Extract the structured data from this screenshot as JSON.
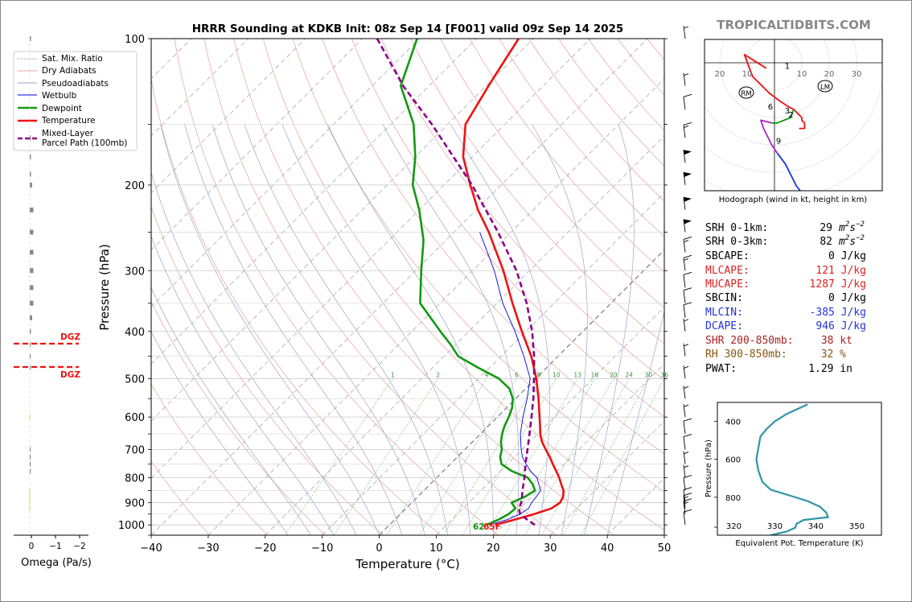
{
  "title": "HRRR Sounding at KDKB Init: 08z Sep 14 [F001] valid 09z Sep 14 2025",
  "brand": "TROPICALTIDBITS.COM",
  "chart_data": [
    {
      "type": "line",
      "name": "skew-t",
      "xlabel": "Temperature (°C)",
      "ylabel": "Pressure (hPa)",
      "xlim": [
        -40,
        50
      ],
      "ylim": [
        1050,
        100
      ],
      "yscale": "log",
      "skew_deg": 45,
      "xticks": [
        -40,
        -30,
        -20,
        -10,
        0,
        10,
        20,
        30,
        40,
        50
      ],
      "yticks": [
        100,
        200,
        300,
        400,
        500,
        600,
        700,
        800,
        900,
        1000
      ],
      "legend_position": "top-left",
      "legend": [
        "Sat. Mix. Ratio",
        "Dry Adiabats",
        "Pseudoadiabats",
        "Wetbulb",
        "Dewpoint",
        "Temperature",
        "Mixed-Layer\nParcel Path (100mb)"
      ],
      "mixing_ratio_labels": [
        "1",
        "2",
        "4",
        "6",
        "8",
        "10",
        "13",
        "16",
        "20",
        "24",
        "30",
        "36"
      ],
      "surface_dewpoint_label": "62",
      "surface_temp_label": "65F",
      "series": [
        {
          "name": "Temperature",
          "color": "#ee1111",
          "points": [
            [
              1000,
              18.5
            ],
            [
              975,
              21
            ],
            [
              950,
              23.5
            ],
            [
              925,
              25.5
            ],
            [
              900,
              26
            ],
            [
              875,
              25.5
            ],
            [
              850,
              24.5
            ],
            [
              825,
              23
            ],
            [
              800,
              21.5
            ],
            [
              775,
              19.8
            ],
            [
              750,
              18
            ],
            [
              725,
              16.2
            ],
            [
              700,
              14.2
            ],
            [
              675,
              12.2
            ],
            [
              650,
              10.5
            ],
            [
              625,
              9
            ],
            [
              600,
              7.4
            ],
            [
              550,
              4
            ],
            [
              500,
              0.1
            ],
            [
              450,
              -4.7
            ],
            [
              400,
              -10.7
            ],
            [
              350,
              -17.3
            ],
            [
              300,
              -24.6
            ],
            [
              250,
              -33.9
            ],
            [
              225,
              -39.7
            ],
            [
              200,
              -45.4
            ],
            [
              175,
              -51.6
            ],
            [
              150,
              -56.9
            ],
            [
              125,
              -59.6
            ],
            [
              100,
              -62.6
            ]
          ]
        },
        {
          "name": "Dewpoint",
          "color": "#119911",
          "points": [
            [
              1000,
              17
            ],
            [
              975,
              18.2
            ],
            [
              950,
              19
            ],
            [
              925,
              19.2
            ],
            [
              900,
              17.5
            ],
            [
              875,
              18.8
            ],
            [
              850,
              19.5
            ],
            [
              825,
              18
            ],
            [
              800,
              16
            ],
            [
              775,
              12
            ],
            [
              750,
              9
            ],
            [
              725,
              7.5
            ],
            [
              700,
              6.5
            ],
            [
              675,
              5
            ],
            [
              650,
              3.8
            ],
            [
              625,
              2.8
            ],
            [
              600,
              2
            ],
            [
              575,
              1
            ],
            [
              550,
              -0.5
            ],
            [
              525,
              -2.8
            ],
            [
              500,
              -6.5
            ],
            [
              475,
              -12
            ],
            [
              450,
              -17.5
            ],
            [
              425,
              -21
            ],
            [
              400,
              -25
            ],
            [
              350,
              -33.5
            ],
            [
              300,
              -39
            ],
            [
              260,
              -43.9
            ],
            [
              225,
              -50
            ],
            [
              200,
              -55.5
            ],
            [
              175,
              -60
            ],
            [
              150,
              -66
            ],
            [
              125,
              -75
            ],
            [
              100,
              -80.4
            ]
          ]
        },
        {
          "name": "Wetbulb",
          "color": "#0000ee",
          "points": [
            [
              1000,
              17.5
            ],
            [
              975,
              19.7
            ],
            [
              950,
              21
            ],
            [
              925,
              21.5
            ],
            [
              900,
              21
            ],
            [
              875,
              20.8
            ],
            [
              850,
              20.5
            ],
            [
              800,
              17.6
            ],
            [
              775,
              15.3
            ],
            [
              750,
              13.3
            ],
            [
              725,
              11.4
            ],
            [
              700,
              9.9
            ],
            [
              650,
              7
            ],
            [
              600,
              4.5
            ],
            [
              550,
              2
            ],
            [
              500,
              -1
            ],
            [
              450,
              -6
            ],
            [
              400,
              -11.9
            ],
            [
              350,
              -19
            ],
            [
              300,
              -26.2
            ],
            [
              250,
              -35.5
            ]
          ]
        },
        {
          "name": "Mixed-Layer Parcel Path (100mb)",
          "color": "#880088",
          "dashed": true,
          "points": [
            [
              1000,
              25.5
            ],
            [
              975,
              23.2
            ],
            [
              950,
              21
            ],
            [
              925,
              19.8
            ],
            [
              900,
              19.2
            ],
            [
              875,
              18.3
            ],
            [
              850,
              17.3
            ],
            [
              800,
              15.4
            ],
            [
              750,
              13.2
            ],
            [
              700,
              11
            ],
            [
              650,
              8.6
            ],
            [
              600,
              6
            ],
            [
              550,
              3.1
            ],
            [
              500,
              -0.3
            ],
            [
              450,
              -4.2
            ],
            [
              400,
              -8.9
            ],
            [
              350,
              -14.8
            ],
            [
              300,
              -22.3
            ],
            [
              250,
              -32.3
            ],
            [
              200,
              -45.1
            ],
            [
              150,
              -62.8
            ],
            [
              125,
              -74.6
            ],
            [
              100,
              -87.4
            ]
          ]
        }
      ]
    },
    {
      "type": "line",
      "name": "hodograph",
      "xlabel": "Hodograph (wind in kt, height in km)",
      "ring_labels": [
        "20",
        "10",
        "10",
        "20",
        "30"
      ],
      "height_labels": [
        "1",
        "2",
        "3",
        "6",
        "9"
      ],
      "storm_motion_labels": [
        "RM",
        "LM"
      ],
      "segments": [
        {
          "color": "#ee1111",
          "points": [
            [
              -3,
              -2
            ],
            [
              -11,
              3
            ],
            [
              -8,
              -5
            ],
            [
              -2,
              -11
            ],
            [
              2,
              -14
            ],
            [
              5,
              -16
            ],
            [
              7,
              -17
            ],
            [
              8,
              -18
            ],
            [
              10,
              -20
            ],
            [
              10,
              -21
            ],
            [
              11,
              -22
            ],
            [
              11,
              -24
            ],
            [
              9,
              -24
            ]
          ]
        },
        {
          "color": "#119911",
          "points": [
            [
              7,
              -17
            ],
            [
              6,
              -20
            ],
            [
              1,
              -22
            ],
            [
              -1,
              -22
            ]
          ]
        },
        {
          "color": "#aa22cc",
          "points": [
            [
              -1,
              -22
            ],
            [
              -5,
              -21
            ],
            [
              -4,
              -24
            ],
            [
              -1,
              -30
            ],
            [
              1,
              -33
            ]
          ]
        },
        {
          "color": "#1133ee",
          "points": [
            [
              1,
              -33
            ],
            [
              4,
              -37
            ],
            [
              8,
              -45
            ],
            [
              12,
              -50
            ],
            [
              16,
              -53
            ],
            [
              21,
              -52
            ]
          ]
        }
      ]
    },
    {
      "type": "line",
      "name": "theta-e",
      "xlabel": "Equivalent Pot. Temperature (K)",
      "ylabel": "Pressure (hPa)",
      "xlim": [
        316,
        356
      ],
      "ylim": [
        1000,
        300
      ],
      "xticks": [
        320,
        330,
        340,
        350
      ],
      "yticks": [
        400,
        600,
        800
      ],
      "color": "#2f95a8",
      "points": [
        [
          1000,
          329
        ],
        [
          980,
          333
        ],
        [
          960,
          335
        ],
        [
          940,
          335.3
        ],
        [
          920,
          337
        ],
        [
          905,
          343
        ],
        [
          880,
          342.5
        ],
        [
          850,
          341
        ],
        [
          820,
          338
        ],
        [
          790,
          333.5
        ],
        [
          760,
          329
        ],
        [
          720,
          327
        ],
        [
          660,
          326
        ],
        [
          600,
          325.5
        ],
        [
          540,
          326
        ],
        [
          480,
          326.5
        ],
        [
          440,
          328
        ],
        [
          400,
          330
        ],
        [
          360,
          333
        ],
        [
          330,
          336
        ],
        [
          310,
          338
        ]
      ]
    }
  ],
  "omega": {
    "axis_label": "Omega (Pa/s)",
    "ticks": [
      "0",
      "−1",
      "−2"
    ],
    "dgz_label": "DGZ",
    "values": [
      [
        100,
        -0.05
      ],
      [
        160,
        -0.05
      ],
      [
        175,
        -0.05
      ],
      [
        190,
        -0.05
      ],
      [
        200,
        -0.1
      ],
      [
        225,
        -0.15
      ],
      [
        250,
        -0.15
      ],
      [
        275,
        -0.15
      ],
      [
        300,
        -0.15
      ],
      [
        325,
        -0.15
      ],
      [
        350,
        -0.15
      ],
      [
        375,
        -0.1
      ],
      [
        400,
        -0.05
      ],
      [
        425,
        -0.03
      ],
      [
        450,
        -0.02
      ],
      [
        475,
        -0.02
      ],
      [
        600,
        0.02
      ],
      [
        700,
        -0.02
      ],
      [
        725,
        -0.02
      ],
      [
        750,
        -0.02
      ],
      [
        775,
        -0.02
      ],
      [
        850,
        0.02
      ],
      [
        875,
        0.02
      ],
      [
        900,
        0.02
      ],
      [
        925,
        0.02
      ]
    ]
  },
  "params": {
    "srh1_label": "SRH 0-1km:",
    "srh1_value": "29",
    "srh3_label": "SRH 0-3km:",
    "srh3_value": "82",
    "srh_unit_base": "m",
    "srh_unit_exp1": "2",
    "srh_unit_mid": "s",
    "srh_unit_exp2": "−2",
    "sbcape_label": "SBCAPE:",
    "sbcape_value": "0 J/kg",
    "mlcape_label": "MLCAPE:",
    "mlcape_value": "121 J/kg",
    "mucape_label": "MUCAPE:",
    "mucape_value": "1287 J/kg",
    "sbcin_label": "SBCIN:",
    "sbcin_value": "0 J/kg",
    "mlcin_label": "MLCIN:",
    "mlcin_value": "-385 J/kg",
    "dcape_label": "DCAPE:",
    "dcape_value": "946 J/kg",
    "shr_label": "SHR 200-850mb:",
    "shr_value": "38 kt",
    "rh_label": "RH 300-850mb:",
    "rh_value": "32 %",
    "pwat_label": "PWAT:",
    "pwat_value": "1.29 in",
    "colors": {
      "red": "#dd2222",
      "blue": "#2233dd",
      "brown": "#885511"
    }
  },
  "wind_barbs": [
    [
      100,
      5
    ],
    [
      125,
      5
    ],
    [
      140,
      10
    ],
    [
      160,
      15
    ],
    [
      180,
      50
    ],
    [
      200,
      50
    ],
    [
      225,
      50
    ],
    [
      250,
      50
    ],
    [
      275,
      15
    ],
    [
      300,
      15
    ],
    [
      325,
      10
    ],
    [
      350,
      10
    ],
    [
      375,
      10
    ],
    [
      400,
      5
    ],
    [
      450,
      5
    ],
    [
      500,
      5
    ],
    [
      550,
      5
    ],
    [
      600,
      5
    ],
    [
      650,
      10
    ],
    [
      700,
      10
    ],
    [
      750,
      5
    ],
    [
      800,
      5
    ],
    [
      850,
      10
    ],
    [
      900,
      10
    ],
    [
      925,
      15
    ],
    [
      950,
      15
    ],
    [
      1000,
      10
    ]
  ]
}
